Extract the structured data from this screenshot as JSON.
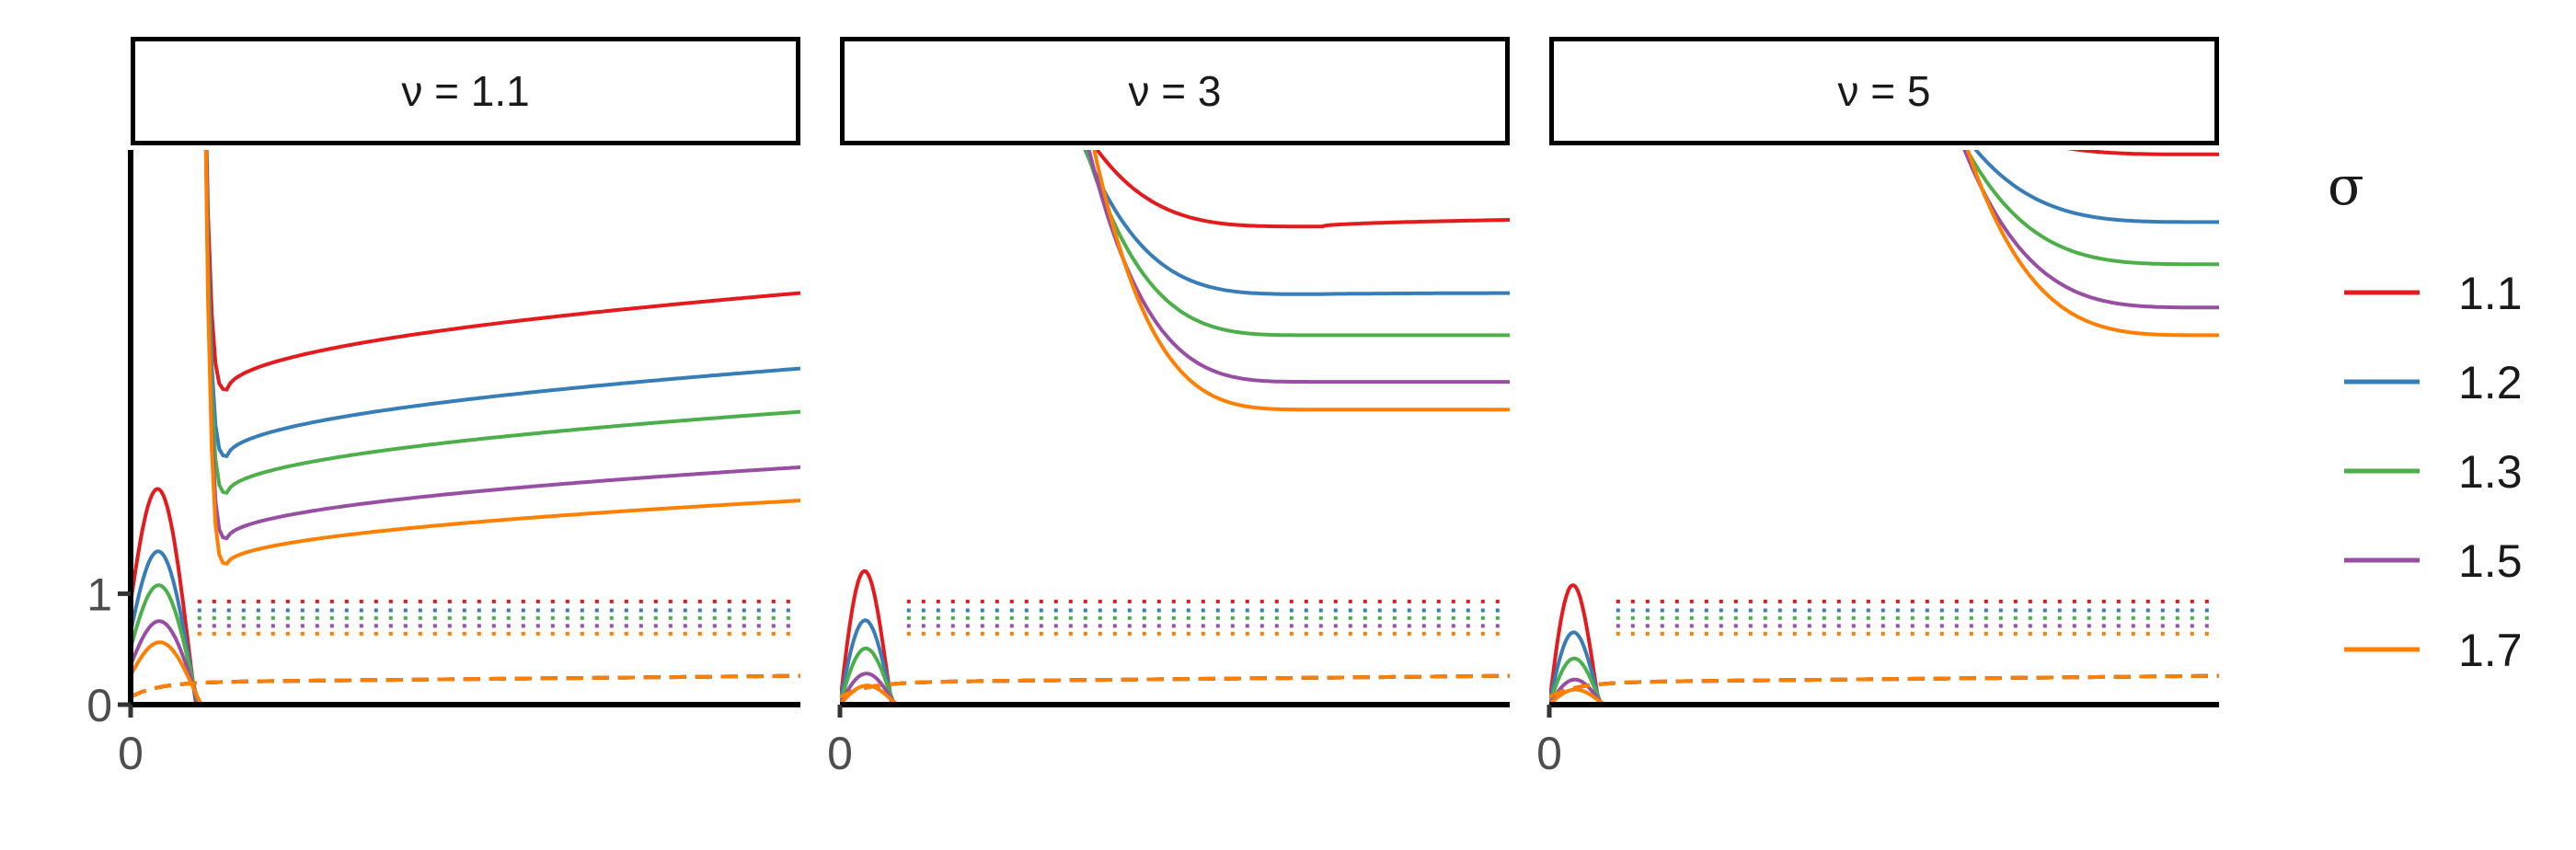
{
  "chart_data": {
    "type": "line",
    "facets": [
      "ν = 1.1",
      "ν = 3",
      "ν = 5"
    ],
    "x_tick_labels": [
      "0"
    ],
    "y_tick_labels": [
      "0",
      "1"
    ],
    "y_ticks": [
      0,
      1
    ],
    "ylim": [
      0,
      5
    ],
    "legend": {
      "title": "σ",
      "position": "right",
      "entries": [
        "1.1",
        "1.2",
        "1.3",
        "1.5",
        "1.7"
      ]
    },
    "colors": [
      "#E41A1C",
      "#377EB8",
      "#4DAF4A",
      "#984EA3",
      "#FF7F00"
    ],
    "series_levels": {
      "solid_tail_y_at_right_edge": [
        [
          3.71,
          3.03,
          2.64,
          2.14,
          1.84
        ],
        [
          4.37,
          3.71,
          3.33,
          2.91,
          2.66
        ],
        [
          4.96,
          4.35,
          3.97,
          3.58,
          3.33
        ]
      ],
      "solid_min_y": [
        [
          2.84,
          2.24,
          1.91,
          1.5,
          1.27
        ],
        [
          4.31,
          3.7,
          3.33,
          2.91,
          2.66
        ],
        [
          4.96,
          4.35,
          3.97,
          3.58,
          3.33
        ]
      ],
      "solid_hump_peak_y": [
        [
          2.04,
          1.45,
          1.13,
          0.79,
          0.59
        ],
        [
          1.33,
          0.84,
          0.56,
          0.31,
          0.19
        ],
        [
          1.19,
          0.72,
          0.46,
          0.25,
          0.15
        ]
      ],
      "dotted_y": [
        0.93,
        0.85,
        0.78,
        0.71,
        0.64
      ],
      "dashed_y": [
        0.2,
        0.2,
        0.2,
        0.2,
        0.2
      ]
    }
  }
}
